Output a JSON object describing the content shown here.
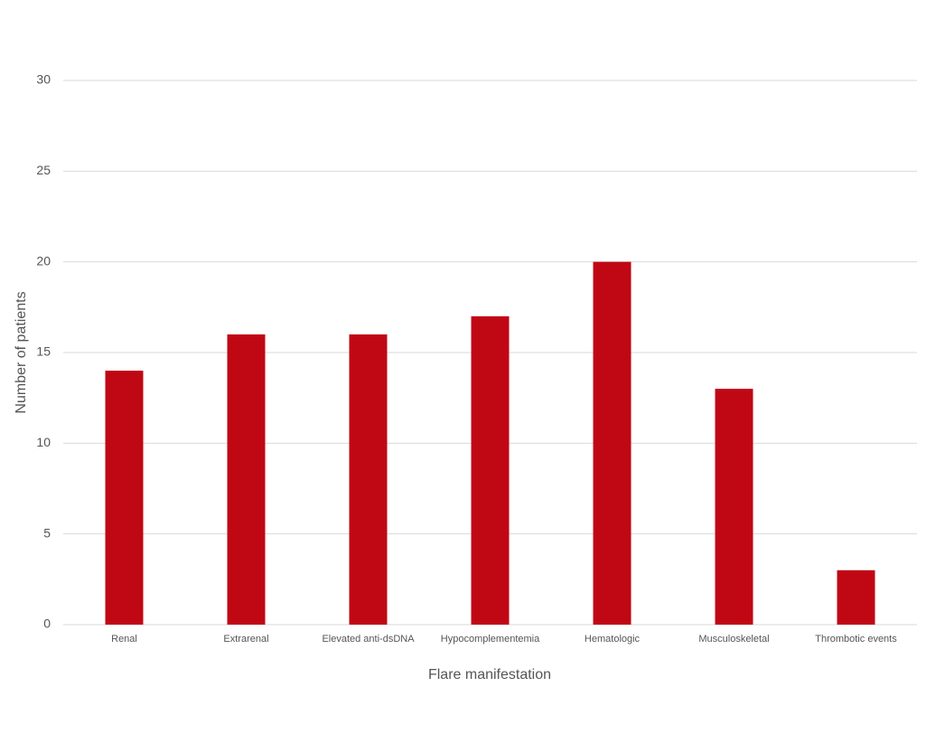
{
  "chart_data": {
    "type": "bar",
    "x_label": "Flare manifestation",
    "y_label": "Number of patients",
    "categories": [
      "Renal",
      "Extrarenal",
      "Elevated anti-dsDNA",
      "Hypocomplementemia",
      "Hematologic",
      "Musculoskeletal",
      "Thrombotic events"
    ],
    "values": [
      14,
      16,
      16,
      17,
      20,
      13,
      3
    ],
    "color": "#c00815",
    "ylim": [
      0,
      30
    ],
    "yticks": [
      0,
      5,
      10,
      15,
      20,
      25,
      30
    ],
    "grid": true
  }
}
